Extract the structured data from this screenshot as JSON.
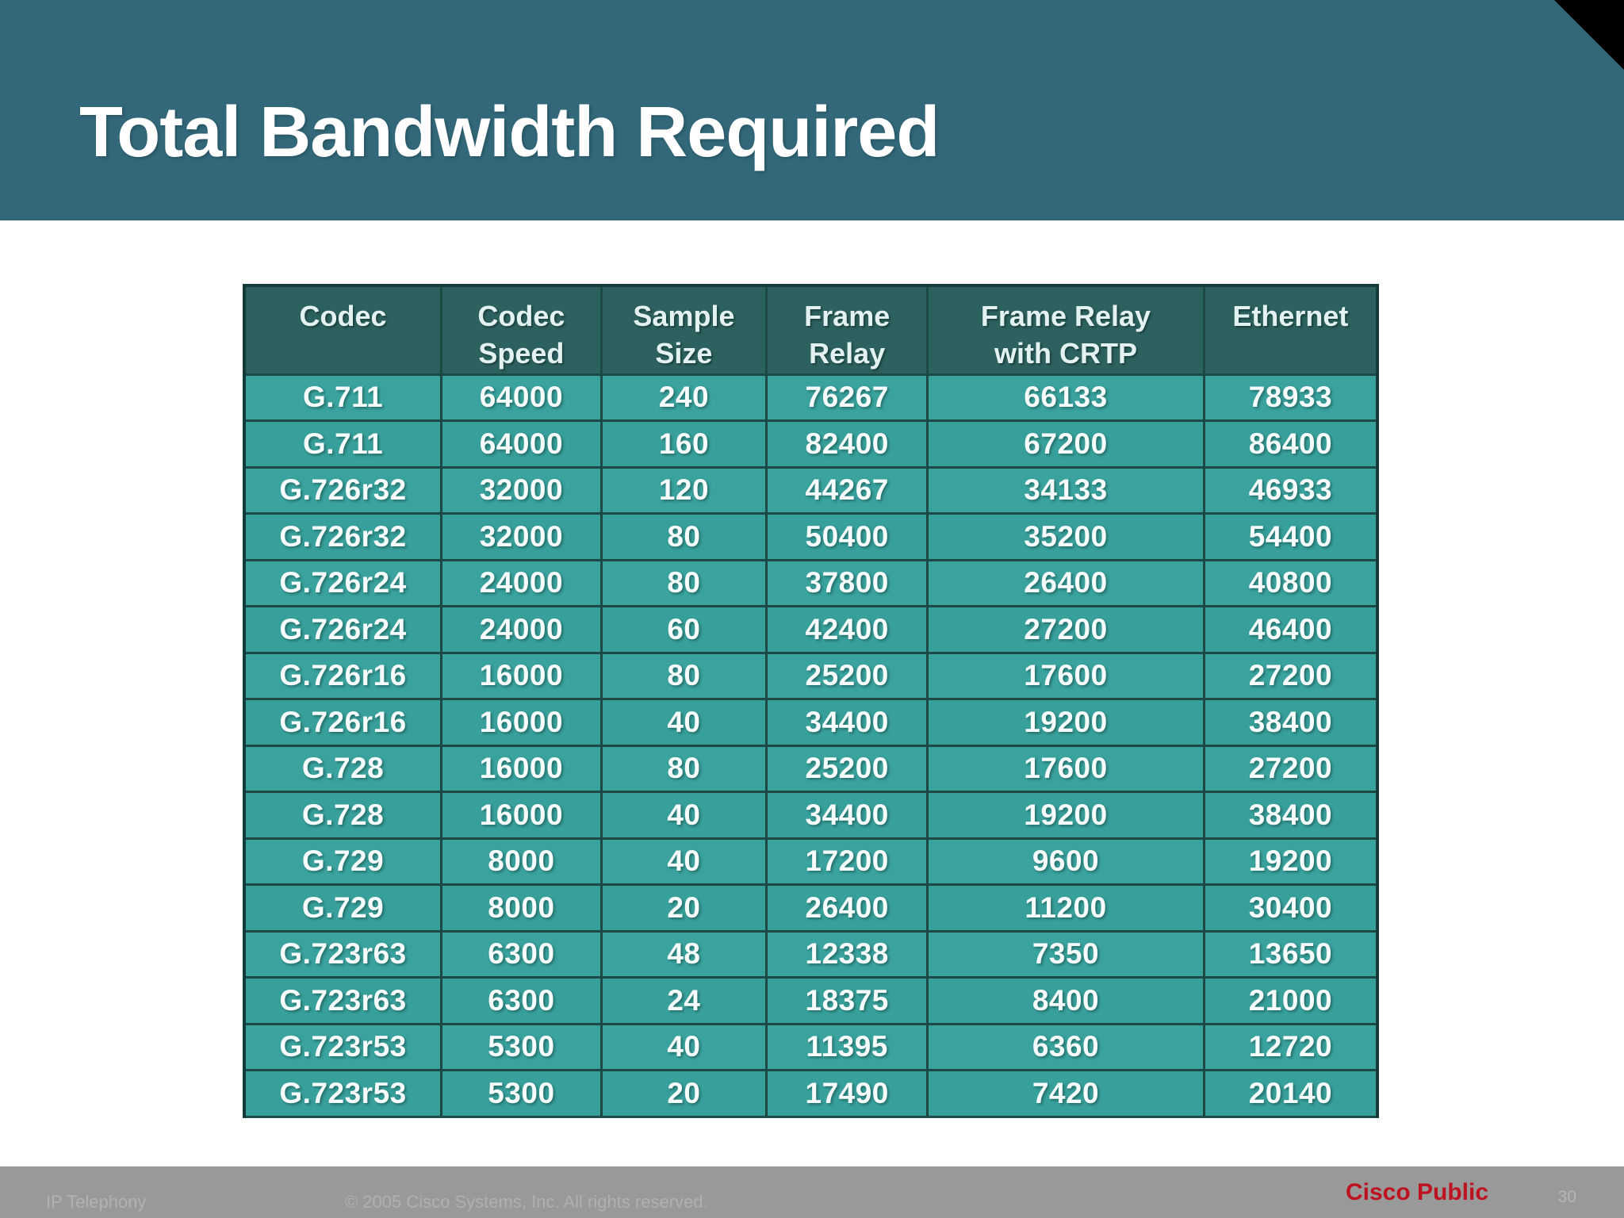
{
  "slide": {
    "title": "Total Bandwidth Required"
  },
  "footer": {
    "product": "IP Telephony",
    "copyright": "© 2005 Cisco Systems, Inc. All rights reserved.",
    "classification": "Cisco Public",
    "page_number": "30"
  },
  "colors": {
    "header_band": "#326879",
    "corner_black": "#000000",
    "table_header_bg": "#2d615f",
    "table_body_bg": "#3aa39e",
    "table_border": "#1c4946",
    "table_outer_border": "#143b39",
    "footer_bg": "#999999",
    "cisco_red": "#bd1220"
  },
  "chart_data": {
    "type": "table",
    "title": "Total Bandwidth Required",
    "columns": [
      "Codec",
      "Codec\nSpeed",
      "Sample\nSize",
      "Frame\nRelay",
      "Frame Relay\nwith CRTP",
      "Ethernet"
    ],
    "rows": [
      [
        "G.711",
        "64000",
        "240",
        "76267",
        "66133",
        "78933"
      ],
      [
        "G.711",
        "64000",
        "160",
        "82400",
        "67200",
        "86400"
      ],
      [
        "G.726r32",
        "32000",
        "120",
        "44267",
        "34133",
        "46933"
      ],
      [
        "G.726r32",
        "32000",
        "80",
        "50400",
        "35200",
        "54400"
      ],
      [
        "G.726r24",
        "24000",
        "80",
        "37800",
        "26400",
        "40800"
      ],
      [
        "G.726r24",
        "24000",
        "60",
        "42400",
        "27200",
        "46400"
      ],
      [
        "G.726r16",
        "16000",
        "80",
        "25200",
        "17600",
        "27200"
      ],
      [
        "G.726r16",
        "16000",
        "40",
        "34400",
        "19200",
        "38400"
      ],
      [
        "G.728",
        "16000",
        "80",
        "25200",
        "17600",
        "27200"
      ],
      [
        "G.728",
        "16000",
        "40",
        "34400",
        "19200",
        "38400"
      ],
      [
        "G.729",
        "8000",
        "40",
        "17200",
        "9600",
        "19200"
      ],
      [
        "G.729",
        "8000",
        "20",
        "26400",
        "11200",
        "30400"
      ],
      [
        "G.723r63",
        "6300",
        "48",
        "12338",
        "7350",
        "13650"
      ],
      [
        "G.723r63",
        "6300",
        "24",
        "18375",
        "8400",
        "21000"
      ],
      [
        "G.723r53",
        "5300",
        "40",
        "11395",
        "6360",
        "12720"
      ],
      [
        "G.723r53",
        "5300",
        "20",
        "17490",
        "7420",
        "20140"
      ]
    ]
  }
}
